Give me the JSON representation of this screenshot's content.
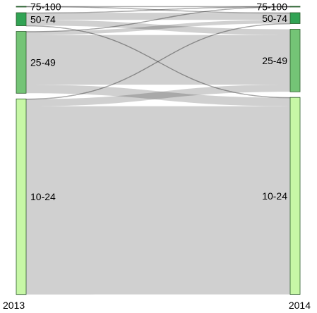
{
  "chart_data": {
    "type": "sankey",
    "title": "",
    "columns": [
      "2013",
      "2014"
    ],
    "nodes": [
      {
        "id": "s75",
        "name": "75-100",
        "column": 0,
        "color": "#006d2c"
      },
      {
        "id": "s50",
        "name": "50-74",
        "column": 0,
        "color": "#31a354"
      },
      {
        "id": "s25",
        "name": "25-49",
        "column": 0,
        "color": "#74c476"
      },
      {
        "id": "s10",
        "name": "10-24",
        "column": 0,
        "color": "#c7f7a6"
      },
      {
        "id": "t75",
        "name": "75-100",
        "column": 1,
        "color": "#006d2c"
      },
      {
        "id": "t50",
        "name": "50-74",
        "column": 1,
        "color": "#31a354"
      },
      {
        "id": "t25",
        "name": "25-49",
        "column": 1,
        "color": "#74c476"
      },
      {
        "id": "t10",
        "name": "10-24",
        "column": 1,
        "color": "#c7f7a6"
      }
    ],
    "links": [
      {
        "source": "s75",
        "target": "t75",
        "value": 0.2
      },
      {
        "source": "s75",
        "target": "t50",
        "value": 0.1
      },
      {
        "source": "s50",
        "target": "t75",
        "value": 0.1
      },
      {
        "source": "s50",
        "target": "t50",
        "value": 10
      },
      {
        "source": "s50",
        "target": "t25",
        "value": 8
      },
      {
        "source": "s50",
        "target": "t10",
        "value": 0.3
      },
      {
        "source": "s25",
        "target": "t75",
        "value": 0.1
      },
      {
        "source": "s25",
        "target": "t50",
        "value": 5
      },
      {
        "source": "s25",
        "target": "t25",
        "value": 70
      },
      {
        "source": "s25",
        "target": "t10",
        "value": 12
      },
      {
        "source": "s10",
        "target": "t50",
        "value": 0.3
      },
      {
        "source": "s10",
        "target": "t25",
        "value": 10
      },
      {
        "source": "s10",
        "target": "t10",
        "value": 265
      }
    ],
    "colors": {
      "link": "#c0c0c0",
      "node_border": "#2a5a2a"
    },
    "grid": false,
    "legend": "none"
  }
}
